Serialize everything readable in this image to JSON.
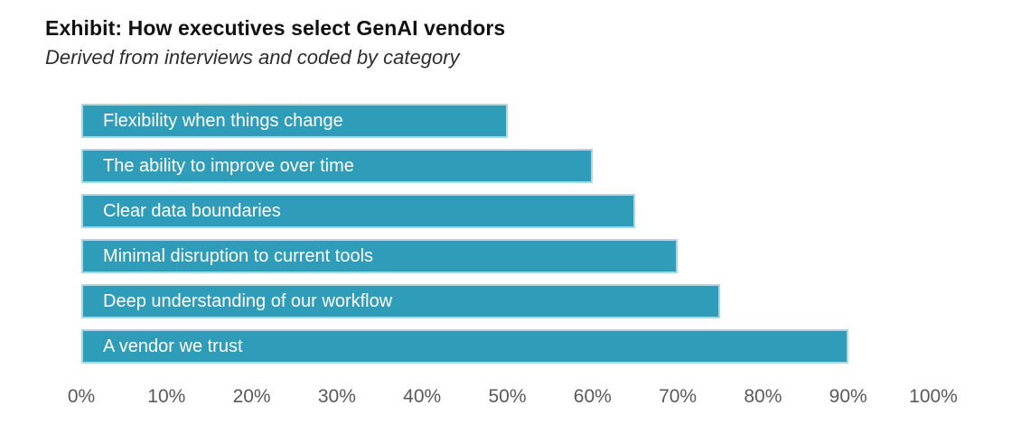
{
  "header": {
    "title": "Exhibit: How executives select GenAI vendors",
    "subtitle": "Derived from interviews and coded by category"
  },
  "chart_data": {
    "type": "bar",
    "orientation": "horizontal",
    "title": "Exhibit: How executives select GenAI vendors",
    "subtitle": "Derived from interviews and coded by category",
    "categories": [
      "Flexibility when things change",
      "The ability to improve over time",
      "Clear data boundaries",
      "Minimal disruption to current tools",
      "Deep understanding of our workflow",
      "A vendor we trust"
    ],
    "values": [
      50,
      60,
      65,
      70,
      75,
      90
    ],
    "xlabel": "",
    "ylabel": "",
    "xlim": [
      0,
      100
    ],
    "xticks": [
      0,
      10,
      20,
      30,
      40,
      50,
      60,
      70,
      80,
      90,
      100
    ],
    "tick_suffix": "%",
    "grid": false,
    "legend": false,
    "bar_color": "#2f9db9",
    "bar_border_color": "#abd7e4",
    "bar_label_color": "#ffffff",
    "axis_text_color": "#595959"
  }
}
